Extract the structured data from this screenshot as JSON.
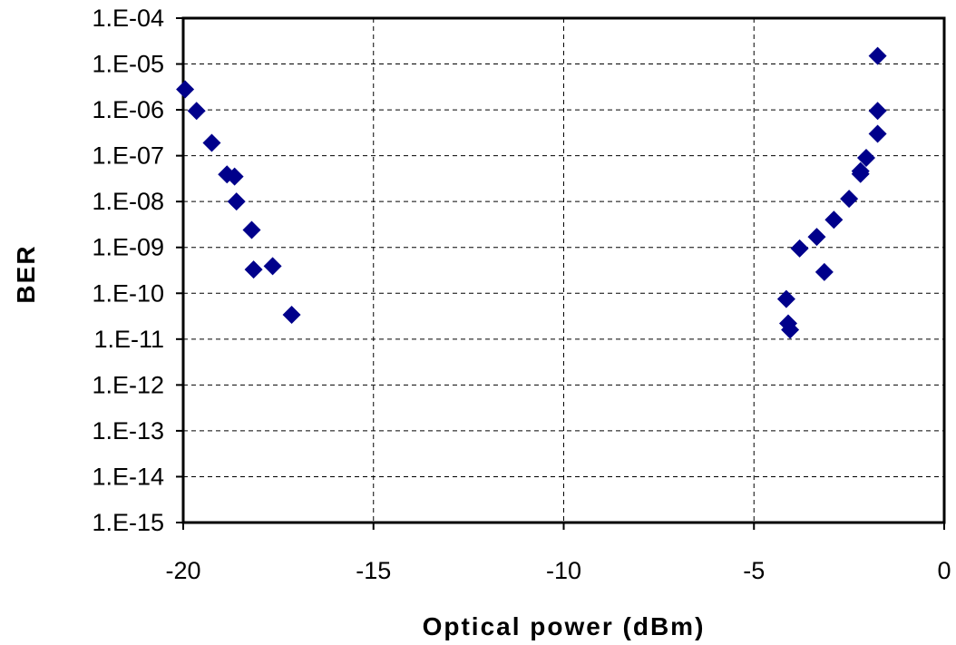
{
  "chart_data": {
    "type": "scatter",
    "title": "",
    "xlabel": "Optical power (dBm)",
    "ylabel": "BER",
    "xlim": [
      -20,
      0
    ],
    "ylim": [
      1e-15,
      0.0001
    ],
    "y_scale": "log",
    "grid": true,
    "legend": "none",
    "x_ticks": [
      {
        "value": -20,
        "label": "-20"
      },
      {
        "value": -15,
        "label": "-15"
      },
      {
        "value": -10,
        "label": "-10"
      },
      {
        "value": -5,
        "label": "-5"
      },
      {
        "value": 0,
        "label": "0"
      }
    ],
    "y_ticks": [
      {
        "value": 0.0001,
        "label": "1.E-04"
      },
      {
        "value": 1e-05,
        "label": "1.E-05"
      },
      {
        "value": 1e-06,
        "label": "1.E-06"
      },
      {
        "value": 1e-07,
        "label": "1.E-07"
      },
      {
        "value": 1e-08,
        "label": "1.E-08"
      },
      {
        "value": 1e-09,
        "label": "1.E-09"
      },
      {
        "value": 1e-10,
        "label": "1.E-10"
      },
      {
        "value": 1e-11,
        "label": "1.E-11"
      },
      {
        "value": 1e-12,
        "label": "1.E-12"
      },
      {
        "value": 1e-13,
        "label": "1.E-13"
      },
      {
        "value": 1e-14,
        "label": "1.E-14"
      },
      {
        "value": 1e-15,
        "label": "1.E-15"
      }
    ],
    "marker_color": "#00008B",
    "series": [
      {
        "points": [
          {
            "x": -19.95,
            "y": 2.8e-06
          },
          {
            "x": -19.65,
            "y": 9.5e-07
          },
          {
            "x": -19.25,
            "y": 1.9e-07
          },
          {
            "x": -18.85,
            "y": 3.9e-08
          },
          {
            "x": -18.65,
            "y": 3.5e-08
          },
          {
            "x": -18.6,
            "y": 1e-08
          },
          {
            "x": -18.2,
            "y": 2.4e-09
          },
          {
            "x": -18.15,
            "y": 3.3e-10
          },
          {
            "x": -17.65,
            "y": 3.9e-10
          },
          {
            "x": -17.15,
            "y": 3.4e-11
          },
          {
            "x": -4.15,
            "y": 7.5e-11
          },
          {
            "x": -4.1,
            "y": 2.2e-11
          },
          {
            "x": -4.05,
            "y": 1.6e-11
          },
          {
            "x": -3.8,
            "y": 9.5e-10
          },
          {
            "x": -3.35,
            "y": 1.7e-09
          },
          {
            "x": -3.15,
            "y": 2.9e-10
          },
          {
            "x": -2.9,
            "y": 4e-09
          },
          {
            "x": -2.5,
            "y": 1.15e-08
          },
          {
            "x": -2.2,
            "y": 4e-08
          },
          {
            "x": -2.2,
            "y": 4.6e-08
          },
          {
            "x": -2.05,
            "y": 9e-08
          },
          {
            "x": -1.75,
            "y": 1.5e-05
          },
          {
            "x": -1.75,
            "y": 9.5e-07
          },
          {
            "x": -1.75,
            "y": 3e-07
          }
        ]
      }
    ]
  }
}
